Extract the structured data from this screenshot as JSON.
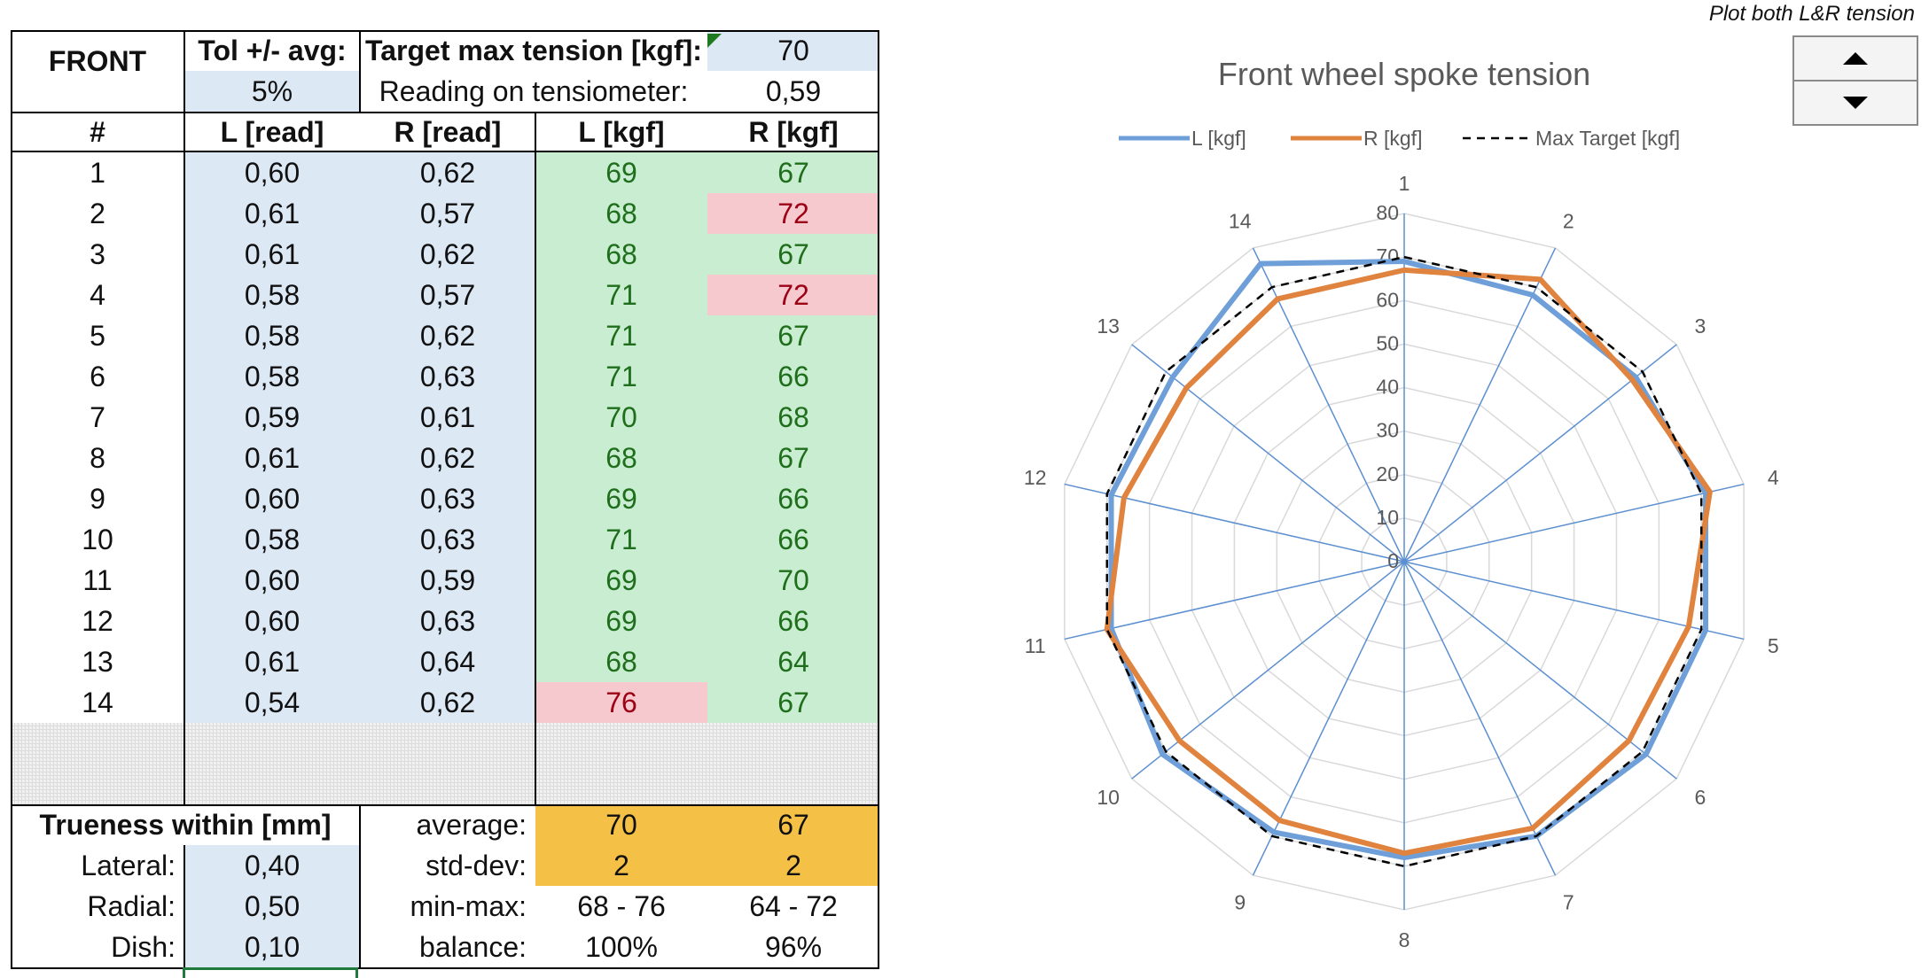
{
  "note": "Plot both L&R tension",
  "header": {
    "front": "FRONT",
    "tol_label": "Tol +/- avg:",
    "tol_value": "5%",
    "target_label": "Target max tension [kgf]:",
    "target_value": "70",
    "reading_label": "Reading on tensiometer:",
    "reading_value": "0,59"
  },
  "columns": [
    "#",
    "L [read]",
    "R [read]",
    "L [kgf]",
    "R [kgf]"
  ],
  "rows": [
    {
      "n": "1",
      "lread": "0,60",
      "rread": "0,62",
      "lkgf": "69",
      "rkgf": "67",
      "lstat": "ok",
      "rstat": "ok"
    },
    {
      "n": "2",
      "lread": "0,61",
      "rread": "0,57",
      "lkgf": "68",
      "rkgf": "72",
      "lstat": "ok",
      "rstat": "bad"
    },
    {
      "n": "3",
      "lread": "0,61",
      "rread": "0,62",
      "lkgf": "68",
      "rkgf": "67",
      "lstat": "ok",
      "rstat": "ok"
    },
    {
      "n": "4",
      "lread": "0,58",
      "rread": "0,57",
      "lkgf": "71",
      "rkgf": "72",
      "lstat": "ok",
      "rstat": "bad"
    },
    {
      "n": "5",
      "lread": "0,58",
      "rread": "0,62",
      "lkgf": "71",
      "rkgf": "67",
      "lstat": "ok",
      "rstat": "ok"
    },
    {
      "n": "6",
      "lread": "0,58",
      "rread": "0,63",
      "lkgf": "71",
      "rkgf": "66",
      "lstat": "ok",
      "rstat": "ok"
    },
    {
      "n": "7",
      "lread": "0,59",
      "rread": "0,61",
      "lkgf": "70",
      "rkgf": "68",
      "lstat": "ok",
      "rstat": "ok"
    },
    {
      "n": "8",
      "lread": "0,61",
      "rread": "0,62",
      "lkgf": "68",
      "rkgf": "67",
      "lstat": "ok",
      "rstat": "ok"
    },
    {
      "n": "9",
      "lread": "0,60",
      "rread": "0,63",
      "lkgf": "69",
      "rkgf": "66",
      "lstat": "ok",
      "rstat": "ok"
    },
    {
      "n": "10",
      "lread": "0,58",
      "rread": "0,63",
      "lkgf": "71",
      "rkgf": "66",
      "lstat": "ok",
      "rstat": "ok"
    },
    {
      "n": "11",
      "lread": "0,60",
      "rread": "0,59",
      "lkgf": "69",
      "rkgf": "70",
      "lstat": "ok",
      "rstat": "ok"
    },
    {
      "n": "12",
      "lread": "0,60",
      "rread": "0,63",
      "lkgf": "69",
      "rkgf": "66",
      "lstat": "ok",
      "rstat": "ok"
    },
    {
      "n": "13",
      "lread": "0,61",
      "rread": "0,64",
      "lkgf": "68",
      "rkgf": "64",
      "lstat": "ok",
      "rstat": "ok"
    },
    {
      "n": "14",
      "lread": "0,54",
      "rread": "0,62",
      "lkgf": "76",
      "rkgf": "67",
      "lstat": "bad",
      "rstat": "ok"
    }
  ],
  "trueness": {
    "title": "Trueness within [mm]",
    "lateral_label": "Lateral:",
    "lateral": "0,40",
    "radial_label": "Radial:",
    "radial": "0,50",
    "dish_label": "Dish:",
    "dish": "0,10"
  },
  "stats": {
    "average_label": "average:",
    "avg_l": "70",
    "avg_r": "67",
    "std_label": "std-dev:",
    "std_l": "2",
    "std_r": "2",
    "minmax_label": "min-max:",
    "minmax_l": "68 - 76",
    "minmax_r": "64 - 72",
    "balance_label": "balance:",
    "balance_l": "100%",
    "balance_r": "96%"
  },
  "spinner": {
    "up_icon": "triangle-up-icon",
    "down_icon": "triangle-down-icon"
  },
  "colors": {
    "series_l": "#6f9fd8",
    "series_r": "#e0833f",
    "target": "#000000"
  },
  "chart_data": {
    "type": "radar",
    "title": "Front wheel spoke tension",
    "categories": [
      "1",
      "2",
      "3",
      "4",
      "5",
      "6",
      "7",
      "8",
      "9",
      "10",
      "11",
      "12",
      "13",
      "14"
    ],
    "series": [
      {
        "name": "L [kgf]",
        "values": [
          69,
          68,
          68,
          71,
          71,
          71,
          70,
          68,
          69,
          71,
          69,
          69,
          68,
          76
        ]
      },
      {
        "name": "R [kgf]",
        "values": [
          67,
          72,
          67,
          72,
          67,
          66,
          68,
          67,
          66,
          66,
          70,
          66,
          64,
          67
        ]
      },
      {
        "name": "Max Target [kgf]",
        "values": [
          70,
          70,
          70,
          70,
          70,
          70,
          70,
          70,
          70,
          70,
          70,
          70,
          70,
          70
        ]
      }
    ],
    "ticks": [
      "0",
      "10",
      "20",
      "30",
      "40",
      "50",
      "60",
      "70",
      "80"
    ],
    "rmax": 80
  }
}
